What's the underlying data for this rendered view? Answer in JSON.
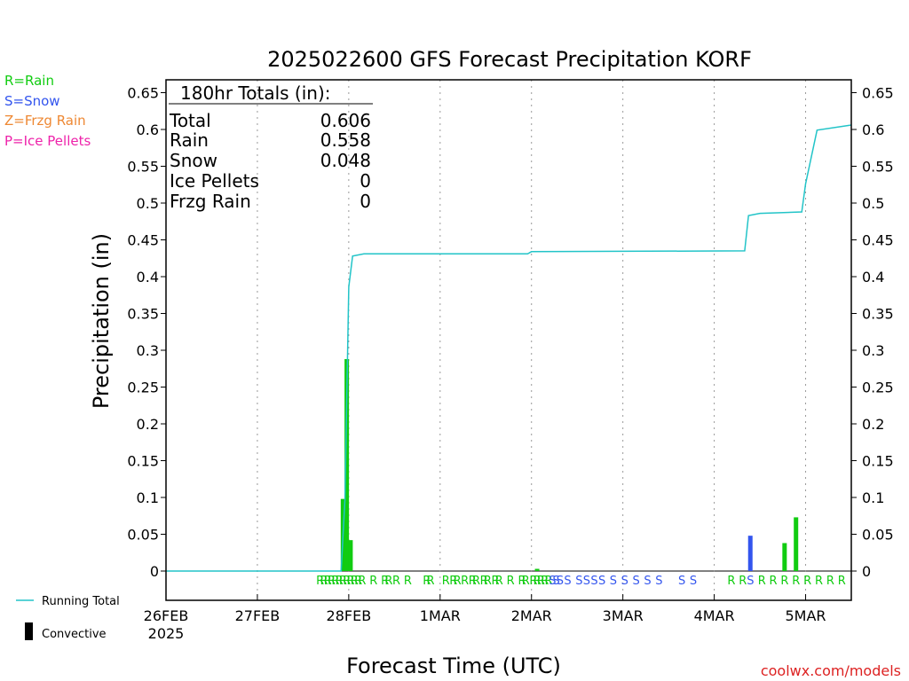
{
  "chart_data": {
    "type": "bar",
    "title": "2025022600 GFS Forecast Precipitation KORF",
    "xlabel": "Forecast Time (UTC)",
    "ylabel": "Precipitation (in)",
    "ylim": [
      -0.05,
      0.65
    ],
    "y_ticks": [
      0,
      0.05,
      0.1,
      0.15,
      0.2,
      0.25,
      0.3,
      0.35,
      0.4,
      0.45,
      0.5,
      0.55,
      0.6,
      0.65
    ],
    "y_tick_labels": [
      "0",
      "0.05",
      "0.1",
      "0.15",
      "0.2",
      "0.25",
      "0.3",
      "0.35",
      "0.4",
      "0.45",
      "0.5",
      "0.55",
      "0.6",
      "0.65"
    ],
    "x_range_hours": [
      0,
      180
    ],
    "x_ticks": [
      {
        "hour": 0,
        "label": "26FEB",
        "sublabel": "2025"
      },
      {
        "hour": 24,
        "label": "27FEB"
      },
      {
        "hour": 48,
        "label": "28FEB"
      },
      {
        "hour": 72,
        "label": "1MAR"
      },
      {
        "hour": 96,
        "label": "2MAR"
      },
      {
        "hour": 120,
        "label": "3MAR"
      },
      {
        "hour": 144,
        "label": "4MAR"
      },
      {
        "hour": 168,
        "label": "5MAR"
      }
    ],
    "grid": "vertical dotted at day boundaries",
    "legend_precip_types": [
      {
        "label": "R=Rain",
        "color": "#11cc11"
      },
      {
        "label": "S=Snow",
        "color": "#3355ee"
      },
      {
        "label": "Z=Frzg Rain",
        "color": "#ee8833"
      },
      {
        "label": "P=Ice Pellets",
        "color": "#ee22aa"
      }
    ],
    "legend_series": [
      {
        "label": "Running Total",
        "color": "#22c4c8"
      },
      {
        "label": "Convective",
        "color": "#000000"
      }
    ],
    "totals_box": {
      "header": "180hr Totals (in):",
      "rows": [
        {
          "label": "Total",
          "value": "0.606"
        },
        {
          "label": "Rain",
          "value": "0.558"
        },
        {
          "label": "Snow",
          "value": "0.048"
        },
        {
          "label": "Ice Pellets",
          "value": "0"
        },
        {
          "label": "Frzg Rain",
          "value": "0"
        }
      ]
    },
    "series": [
      {
        "name": "Rain",
        "color": "#11cc11",
        "points": [
          {
            "hour": 46.5,
            "value": 0.098
          },
          {
            "hour": 47.5,
            "value": 0.288
          },
          {
            "hour": 48.5,
            "value": 0.042
          },
          {
            "hour": 97.5,
            "value": 0.003
          },
          {
            "hour": 162.5,
            "value": 0.038
          },
          {
            "hour": 165.5,
            "value": 0.073
          }
        ]
      },
      {
        "name": "Snow",
        "color": "#3355ee",
        "points": [
          {
            "hour": 153.5,
            "value": 0.048
          }
        ]
      },
      {
        "name": "Running Total",
        "color": "#22c4c8",
        "points": [
          {
            "hour": 0,
            "value": 0
          },
          {
            "hour": 46,
            "value": 0
          },
          {
            "hour": 47,
            "value": 0.098
          },
          {
            "hour": 48,
            "value": 0.386
          },
          {
            "hour": 49,
            "value": 0.428
          },
          {
            "hour": 52,
            "value": 0.431
          },
          {
            "hour": 95,
            "value": 0.431
          },
          {
            "hour": 96,
            "value": 0.434
          },
          {
            "hour": 152,
            "value": 0.435
          },
          {
            "hour": 153,
            "value": 0.483
          },
          {
            "hour": 156,
            "value": 0.486
          },
          {
            "hour": 167,
            "value": 0.488
          },
          {
            "hour": 168,
            "value": 0.526
          },
          {
            "hour": 171,
            "value": 0.599
          },
          {
            "hour": 180,
            "value": 0.606
          }
        ]
      }
    ],
    "type_markers": {
      "groups": [
        {
          "letter": "R",
          "color": "#11cc11",
          "hours": [
            40.5,
            41.5,
            42.5,
            43.5,
            44.5,
            45.5,
            46.5,
            47.5,
            48.5,
            49.5,
            50.5,
            51.5,
            54.5,
            57.5,
            58.5,
            60.5,
            63.5,
            68.5,
            69.5,
            73.5,
            75.5,
            76.5,
            78.5,
            80.5,
            81.5,
            83.5,
            84.5,
            86.5,
            87.5,
            90.5,
            93.5,
            94.5,
            96.5,
            97.5,
            98.5,
            99.5,
            100.5,
            148.5,
            151.5,
            156.5,
            159.5,
            162.5,
            165.5,
            168.5,
            171.5,
            174.5,
            177.5,
            180.5
          ]
        },
        {
          "letter": "S",
          "color": "#3355ee",
          "hours": [
            101.5,
            102.5,
            103.5,
            105.5,
            108.5,
            110.5,
            112.5,
            114.5,
            117.5,
            120.5,
            123.5,
            126.5,
            129.5,
            135.5,
            138.5,
            153.5
          ]
        }
      ]
    }
  },
  "branding": {
    "text": "coolwx.com/models",
    "color": "#dd2222"
  }
}
